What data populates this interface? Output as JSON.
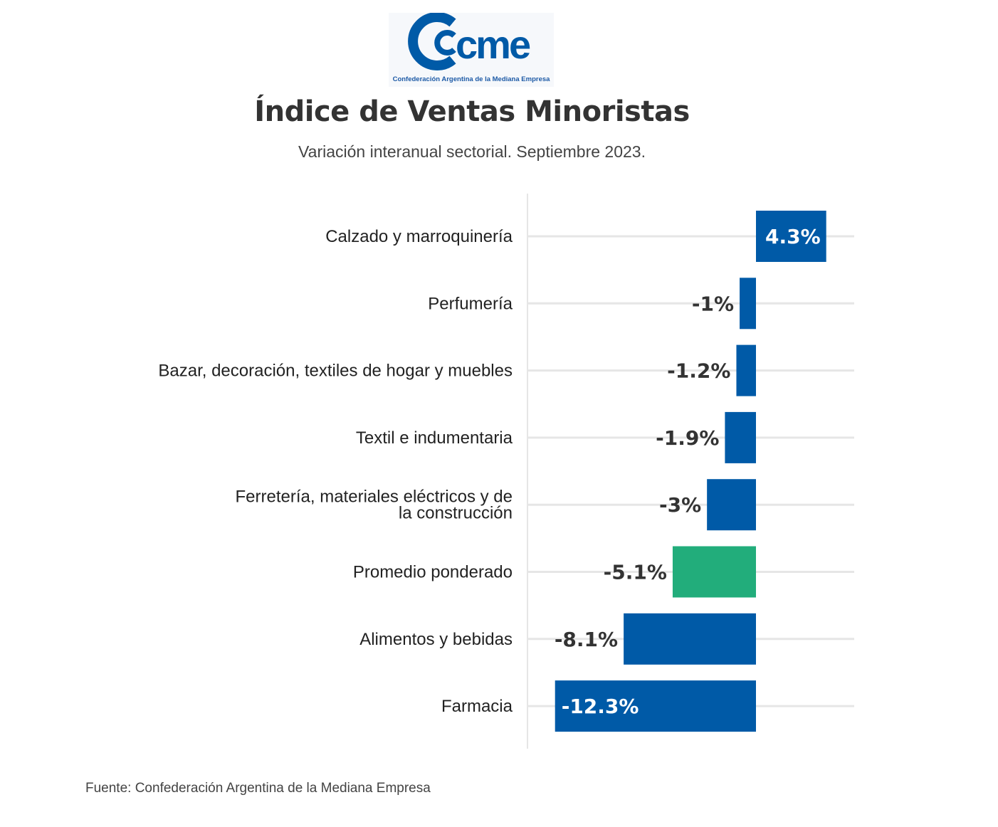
{
  "header": {
    "logo_text": "cme",
    "logo_caption": "Confederación Argentina de la Mediana Empresa"
  },
  "chart_data": {
    "type": "bar",
    "orientation": "horizontal",
    "title": "Índice de Ventas Minoristas",
    "subtitle": "Variación interanual sectorial. Septiembre 2023.",
    "categories": [
      "Calzado y marroquinería",
      "Perfumería",
      "Bazar, decoración, textiles de hogar y muebles",
      "Textil e indumentaria",
      "Ferretería, materiales eléctricos y de la construcción",
      "Promedio ponderado",
      "Alimentos y bebidas",
      "Farmacia"
    ],
    "values": [
      4.3,
      -1,
      -1.2,
      -1.9,
      -3,
      -5.1,
      -8.1,
      -12.3
    ],
    "labels": [
      "4.3%",
      "-1%",
      "-1.2%",
      "-1.9%",
      "-3%",
      "-5.1%",
      "-8.1%",
      "-12.3%"
    ],
    "highlight_index": 5,
    "xlim": [
      -14,
      6
    ],
    "grid": "horizontal guide lines per category",
    "colors": {
      "bar": "#005aa7",
      "highlight": "#22ad7b",
      "gridline": "#e6e6e6",
      "label_dark": "#333333",
      "label_light": "#ffffff"
    }
  },
  "footer": {
    "source": "Fuente: Confederación Argentina de la Mediana Empresa"
  }
}
